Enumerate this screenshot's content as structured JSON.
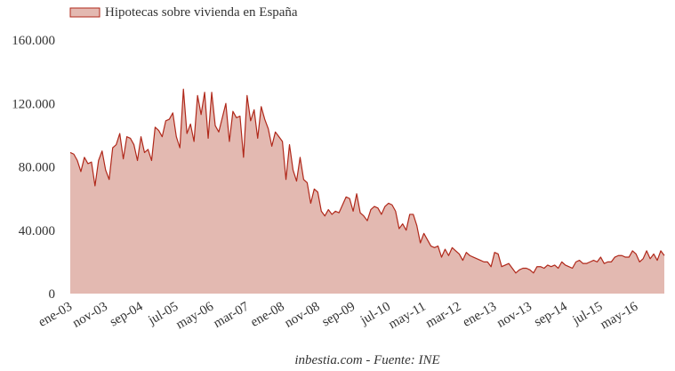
{
  "chart_data": {
    "type": "area",
    "title": "",
    "xlabel": "",
    "ylabel": "",
    "ylim": [
      0,
      160000
    ],
    "yticks": [
      {
        "value": 0,
        "label": "0"
      },
      {
        "value": 40000,
        "label": "40.000"
      },
      {
        "value": 80000,
        "label": "80.000"
      },
      {
        "value": 120000,
        "label": "120.000"
      },
      {
        "value": 160000,
        "label": "160.000"
      }
    ],
    "xticks": [
      {
        "index": 0,
        "label": "ene-03"
      },
      {
        "index": 10,
        "label": "nov-03"
      },
      {
        "index": 20,
        "label": "sep-04"
      },
      {
        "index": 30,
        "label": "jul-05"
      },
      {
        "index": 40,
        "label": "may-06"
      },
      {
        "index": 50,
        "label": "mar-07"
      },
      {
        "index": 60,
        "label": "ene-08"
      },
      {
        "index": 70,
        "label": "nov-08"
      },
      {
        "index": 80,
        "label": "sep-09"
      },
      {
        "index": 90,
        "label": "jul-10"
      },
      {
        "index": 100,
        "label": "may-11"
      },
      {
        "index": 110,
        "label": "mar-12"
      },
      {
        "index": 120,
        "label": "ene-13"
      },
      {
        "index": 130,
        "label": "nov-13"
      },
      {
        "index": 140,
        "label": "sep-14"
      },
      {
        "index": 150,
        "label": "jul-15"
      },
      {
        "index": 160,
        "label": "may-16"
      }
    ],
    "legend": {
      "placement": "top-left",
      "entries": [
        "Hipotecas sobre vivienda en España"
      ]
    },
    "grid": false,
    "colors": {
      "fill": "#e3b9b1",
      "line": "#b0281a"
    },
    "series": [
      {
        "name": "Hipotecas sobre vivienda en España",
        "values": [
          89000,
          88000,
          84000,
          77000,
          86000,
          82000,
          83000,
          68000,
          84000,
          90000,
          78000,
          72000,
          92000,
          94000,
          101000,
          85000,
          99000,
          98000,
          94000,
          84000,
          99000,
          89000,
          91000,
          84000,
          105000,
          103000,
          99000,
          109000,
          110000,
          114000,
          99000,
          92000,
          129000,
          101000,
          107000,
          96000,
          125000,
          113000,
          127000,
          98000,
          127000,
          106000,
          102000,
          111000,
          120000,
          96000,
          115000,
          111000,
          112000,
          86000,
          125000,
          109000,
          116000,
          98000,
          118000,
          110000,
          104000,
          93000,
          102000,
          99000,
          96000,
          72000,
          94000,
          78000,
          71000,
          86000,
          72000,
          70000,
          57000,
          66000,
          64000,
          52000,
          49000,
          53000,
          50000,
          52000,
          51000,
          56000,
          61000,
          60000,
          52000,
          63000,
          51000,
          49000,
          46000,
          53000,
          55000,
          54000,
          50000,
          55000,
          57000,
          56000,
          52000,
          41000,
          44000,
          40000,
          50000,
          50000,
          43000,
          32000,
          38000,
          34000,
          30000,
          29000,
          30000,
          23000,
          28000,
          24000,
          29000,
          27000,
          25000,
          21000,
          26000,
          24000,
          23000,
          22000,
          21000,
          20000,
          20000,
          17000,
          26000,
          25000,
          17000,
          18000,
          19000,
          16000,
          13000,
          15000,
          16000,
          16000,
          15000,
          13000,
          17000,
          17000,
          16000,
          18000,
          17000,
          18000,
          16000,
          20000,
          18000,
          17000,
          16000,
          20000,
          21000,
          19000,
          19000,
          20000,
          21000,
          20000,
          23000,
          19000,
          20000,
          20000,
          23000,
          24000,
          24000,
          23000,
          23000,
          27000,
          25000,
          20000,
          22000,
          27000,
          22000,
          25000,
          21000,
          27000,
          24000
        ]
      }
    ]
  },
  "source": "inbestia.com - Fuente: INE"
}
